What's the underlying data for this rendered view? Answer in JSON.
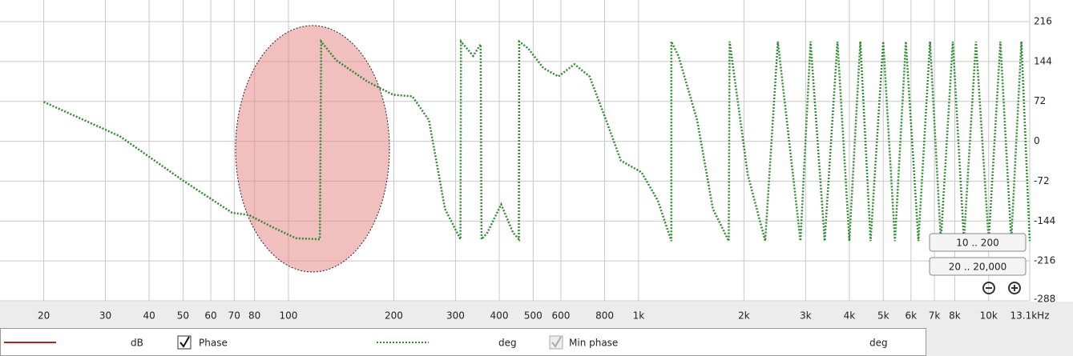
{
  "chart_data": {
    "type": "line",
    "log_x": true,
    "grid": true,
    "xlim": [
      15,
      13100
    ],
    "ylim": [
      -288,
      255
    ],
    "xticks": [
      20,
      30,
      40,
      50,
      60,
      70,
      80,
      100,
      200,
      300,
      400,
      500,
      600,
      800,
      {
        "value": 1000,
        "label": "1k"
      },
      {
        "value": 2000,
        "label": "2k"
      },
      {
        "value": 3000,
        "label": "3k"
      },
      {
        "value": 4000,
        "label": "4k"
      },
      {
        "value": 5000,
        "label": "5k"
      },
      {
        "value": 6000,
        "label": "6k"
      },
      {
        "value": 7000,
        "label": "7k"
      },
      {
        "value": 8000,
        "label": "8k"
      },
      {
        "value": 10000,
        "label": "10k"
      },
      {
        "value": 13100,
        "label": "13.1kHz"
      }
    ],
    "yticks": [
      216,
      144,
      72,
      0,
      -72,
      -144,
      -216,
      -288
    ],
    "x": [
      20,
      33,
      50,
      69,
      77,
      90,
      105,
      123,
      124,
      137,
      169,
      199,
      226,
      252,
      280,
      310,
      311,
      337,
      354,
      356,
      370,
      405,
      438,
      455,
      456,
      483,
      535,
      590,
      656,
      725,
      808,
      890,
      1020,
      1135,
      1240,
      1241,
      1300,
      1470,
      1630,
      1810,
      1820,
      2050,
      2300,
      2500,
      2900,
      3100,
      3400,
      3700,
      4000,
      4300,
      4600,
      5000,
      5400,
      5800,
      6300,
      6800,
      7300,
      7900,
      8500,
      9200,
      10000,
      10800,
      11600,
      12400,
      13100
    ],
    "series": [
      {
        "name": "Phase",
        "color": "#2e8b2e",
        "values": [
          71,
          9,
          -71,
          -129,
          -133,
          -155,
          -175,
          -177,
          180,
          146,
          107,
          84,
          81,
          38,
          -122,
          -177,
          180,
          154,
          175,
          -177,
          -165,
          -114,
          -165,
          -177,
          180,
          168,
          132,
          117,
          139,
          117,
          38,
          -35,
          -56,
          -107,
          -180,
          180,
          154,
          38,
          -122,
          -180,
          180,
          -60,
          -180,
          180,
          -180,
          180,
          -180,
          180,
          -180,
          180,
          -180,
          180,
          -180,
          180,
          -180,
          180,
          -180,
          180,
          -180,
          180,
          -180,
          180,
          -180,
          180,
          -180
        ]
      }
    ]
  },
  "controls": {
    "legend": [
      {
        "unit": "dB",
        "color": "#b22222"
      },
      {
        "unit": "deg",
        "checked": true,
        "enabled": true,
        "color": "#2e8b2e"
      },
      {
        "label": "Min phase",
        "unit": "deg",
        "checked": true,
        "enabled": false,
        "color": "#aaaaaa"
      }
    ],
    "buttons": [
      "10 .. 200",
      "20 .. 20,000"
    ]
  }
}
